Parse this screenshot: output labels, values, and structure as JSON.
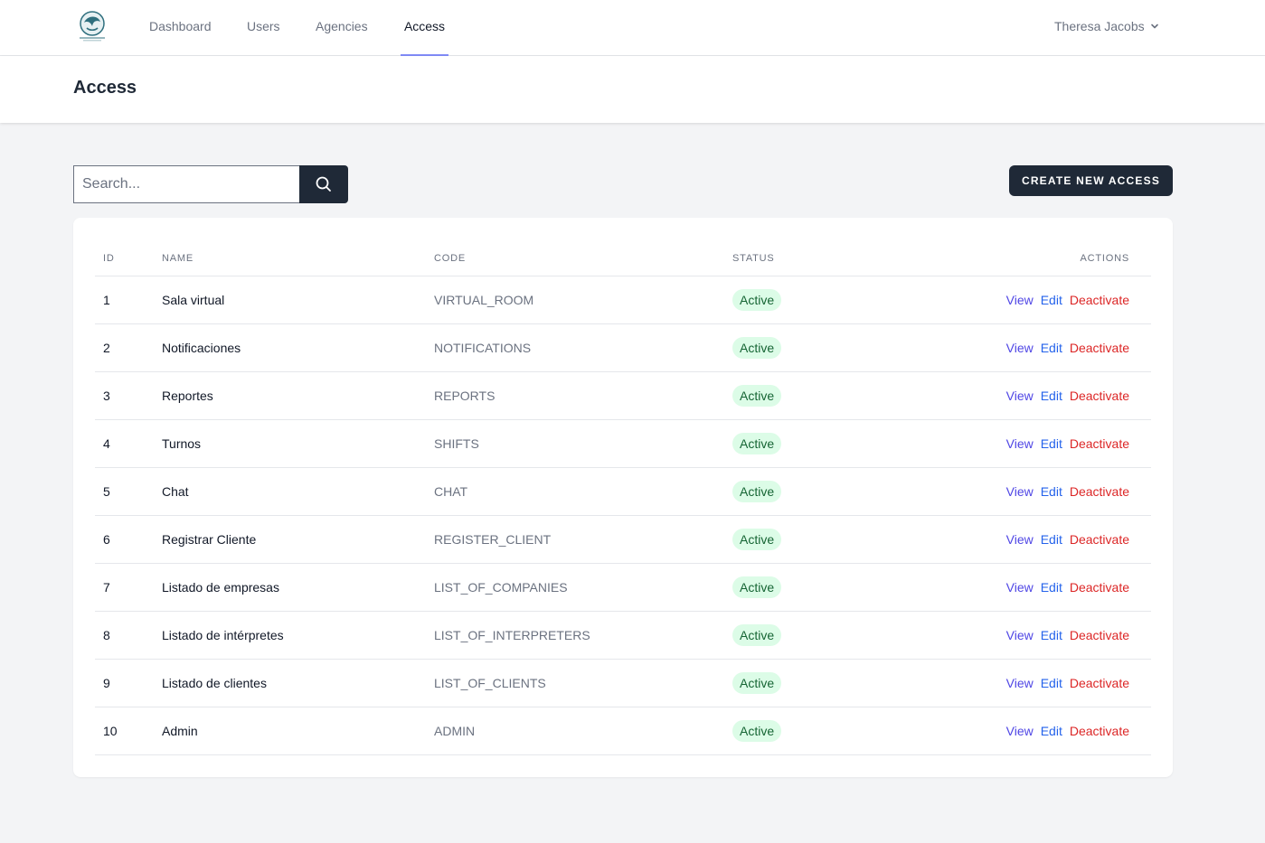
{
  "nav": {
    "links": [
      {
        "label": "Dashboard",
        "active": false
      },
      {
        "label": "Users",
        "active": false
      },
      {
        "label": "Agencies",
        "active": false
      },
      {
        "label": "Access",
        "active": true
      }
    ],
    "user_name": "Theresa Jacobs",
    "accent_color": "#818cf8"
  },
  "header": {
    "title": "Access"
  },
  "search": {
    "placeholder": "Search...",
    "value": ""
  },
  "toolbar": {
    "create_label": "CREATE NEW ACCESS"
  },
  "table": {
    "columns": {
      "id": "ID",
      "name": "NAME",
      "code": "CODE",
      "status": "STATUS",
      "actions": "ACTIONS"
    },
    "action_labels": {
      "view": "View",
      "edit": "Edit",
      "deactivate": "Deactivate"
    },
    "rows": [
      {
        "id": "1",
        "name": "Sala virtual",
        "code": "VIRTUAL_ROOM",
        "status": "Active"
      },
      {
        "id": "2",
        "name": "Notificaciones",
        "code": "NOTIFICATIONS",
        "status": "Active"
      },
      {
        "id": "3",
        "name": "Reportes",
        "code": "REPORTS",
        "status": "Active"
      },
      {
        "id": "4",
        "name": "Turnos",
        "code": "SHIFTS",
        "status": "Active"
      },
      {
        "id": "5",
        "name": "Chat",
        "code": "CHAT",
        "status": "Active"
      },
      {
        "id": "6",
        "name": "Registrar Cliente",
        "code": "REGISTER_CLIENT",
        "status": "Active"
      },
      {
        "id": "7",
        "name": "Listado de empresas",
        "code": "LIST_OF_COMPANIES",
        "status": "Active"
      },
      {
        "id": "8",
        "name": "Listado de intérpretes",
        "code": "LIST_OF_INTERPRETERS",
        "status": "Active"
      },
      {
        "id": "9",
        "name": "Listado de clientes",
        "code": "LIST_OF_CLIENTS",
        "status": "Active"
      },
      {
        "id": "10",
        "name": "Admin",
        "code": "ADMIN",
        "status": "Active"
      }
    ]
  },
  "icons": {
    "logo": "app-logo",
    "search": "search-icon",
    "user_menu": "chevron-down-icon"
  }
}
